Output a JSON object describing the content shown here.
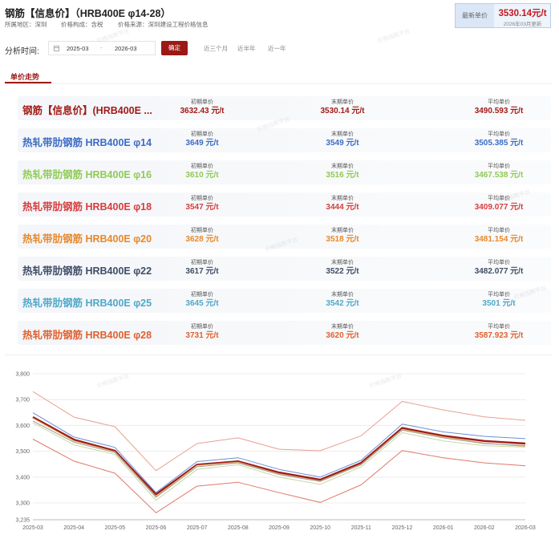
{
  "header": {
    "title": "钢筋【信息价】（HRB400E φ14-28）",
    "region": "所属地区：深圳",
    "composition": "价格构成：含税",
    "source": "价格来源：深圳建设工程价格信息"
  },
  "latest": {
    "label": "最新单价",
    "value": "3530.14元/t",
    "date": "2026年03月更新"
  },
  "analysis": {
    "label": "分析时间:",
    "start": "2025-03",
    "separator": "-",
    "end": "2026-03",
    "confirm": "确定",
    "quick": [
      "近三个月",
      "近半年",
      "近一年"
    ]
  },
  "tab_label": "单价走势",
  "col_labels": {
    "first": "初期单价",
    "last": "末期单价",
    "avg": "平均单价"
  },
  "rows": [
    {
      "name": "钢筋【信息价】(HRB400E ...",
      "color": "#a01c18",
      "first": "3632.43 元/t",
      "last": "3530.14 元/t",
      "avg": "3490.593 元/t"
    },
    {
      "name": "热轧带肋钢筋 HRB400E φ14",
      "color": "#3d6cc4",
      "first": "3649 元/t",
      "last": "3549 元/t",
      "avg": "3505.385 元/t"
    },
    {
      "name": "热轧带肋钢筋 HRB400E φ16",
      "color": "#8fcb55",
      "first": "3610 元/t",
      "last": "3516 元/t",
      "avg": "3467.538 元/t"
    },
    {
      "name": "热轧带肋钢筋 HRB400E φ18",
      "color": "#d63d3d",
      "first": "3547 元/t",
      "last": "3444 元/t",
      "avg": "3409.077 元/t"
    },
    {
      "name": "热轧带肋钢筋 HRB400E φ20",
      "color": "#e8882a",
      "first": "3628 元/t",
      "last": "3518 元/t",
      "avg": "3481.154 元/t"
    },
    {
      "name": "热轧带肋钢筋 HRB400E φ22",
      "color": "#3f4d66",
      "first": "3617 元/t",
      "last": "3522 元/t",
      "avg": "3482.077 元/t"
    },
    {
      "name": "热轧带肋钢筋 HRB400E φ25",
      "color": "#4fa8c8",
      "first": "3645 元/t",
      "last": "3542 元/t",
      "avg": "3501 元/t"
    },
    {
      "name": "热轧带肋钢筋 HRB400E φ28",
      "color": "#e06030",
      "first": "3731 元/t",
      "last": "3620 元/t",
      "avg": "3587.923 元/t"
    }
  ],
  "chart_data": {
    "type": "line",
    "x": [
      "2025-03",
      "2025-04",
      "2025-05",
      "2025-06",
      "2025-07",
      "2025-08",
      "2025-09",
      "2025-10",
      "2025-11",
      "2025-12",
      "2026-01",
      "2026-02",
      "2026-03"
    ],
    "y_ticks": [
      "3,800",
      "3,700",
      "3,600",
      "3,500",
      "3,400",
      "3,300",
      "3,235"
    ],
    "ylim": [
      3235,
      3800
    ],
    "grid": true,
    "series": [
      {
        "color": "#e8a090",
        "values": [
          3731,
          3632,
          3595,
          3425,
          3530,
          3552,
          3508,
          3502,
          3560,
          3693,
          3660,
          3633,
          3620
        ]
      },
      {
        "color": "#6b8fd6",
        "values": [
          3649,
          3555,
          3515,
          3340,
          3460,
          3475,
          3430,
          3400,
          3465,
          3605,
          3575,
          3558,
          3549
        ]
      },
      {
        "color": "#a01c18",
        "values": [
          3632,
          3545,
          3502,
          3333,
          3448,
          3461,
          3418,
          3390,
          3455,
          3590,
          3560,
          3540,
          3530
        ]
      },
      {
        "color": "#e8b870",
        "values": [
          3628,
          3540,
          3498,
          3325,
          3445,
          3458,
          3412,
          3385,
          3450,
          3585,
          3555,
          3532,
          3518
        ]
      },
      {
        "color": "#999999",
        "values": [
          3617,
          3535,
          3495,
          3322,
          3440,
          3455,
          3410,
          3383,
          3448,
          3582,
          3552,
          3530,
          3522
        ]
      },
      {
        "color": "#c8d8a0",
        "values": [
          3610,
          3525,
          3488,
          3310,
          3430,
          3448,
          3400,
          3372,
          3440,
          3572,
          3540,
          3522,
          3516
        ]
      },
      {
        "color": "#e07868",
        "values": [
          3547,
          3462,
          3415,
          3262,
          3365,
          3380,
          3340,
          3302,
          3370,
          3503,
          3475,
          3455,
          3444
        ]
      }
    ]
  }
}
